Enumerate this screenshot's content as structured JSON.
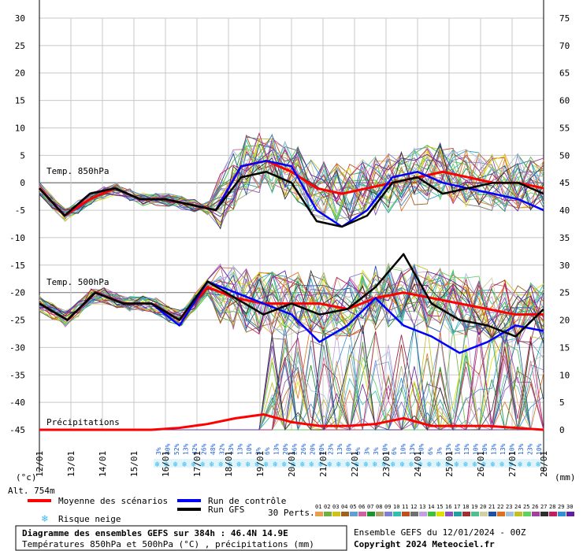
{
  "chart_data": {
    "type": "line",
    "left_axis": {
      "min": -45,
      "max": 30,
      "ticks": [
        "30",
        "25",
        "20",
        "15",
        "10",
        "5",
        "0",
        "-5",
        "-10",
        "-15",
        "-20",
        "-25",
        "-30",
        "-35",
        "-40",
        "-45"
      ]
    },
    "right_axis": {
      "min": 0,
      "max": 75,
      "ticks": [
        "75",
        "70",
        "65",
        "60",
        "55",
        "50",
        "45",
        "40",
        "35",
        "30",
        "25",
        "20",
        "15",
        "10",
        "5",
        "0"
      ]
    },
    "left_unit": "(°c)",
    "right_unit": "(mm)",
    "altitude": "Alt. 754m",
    "dates": [
      "12/01",
      "13/01",
      "14/01",
      "15/01",
      "16/01",
      "17/01",
      "18/01",
      "19/01",
      "20/01",
      "21/01",
      "22/01",
      "23/01",
      "24/01",
      "25/01",
      "26/01",
      "27/01",
      "28/01"
    ],
    "band_labels": {
      "t850": "Temp. 850hPa",
      "t500": "Temp. 500hPa",
      "precip": "Précipitations"
    },
    "snow_risk_pct": [
      "3%",
      "20%",
      "52%",
      "13%",
      "42%",
      "26%",
      "48%",
      "32%",
      "13%",
      "13%",
      "10%",
      "3%",
      "6%",
      "13%",
      "20%",
      "26%",
      "26%",
      "20%",
      "20%",
      "23%",
      "13%",
      "10%",
      "6%",
      "3%",
      "3%",
      "10%",
      "6%",
      "10%",
      "13%",
      "10%",
      "6%",
      "3%",
      "13%",
      "16%",
      "13%",
      "10%",
      "10%",
      "13%",
      "13%",
      "10%",
      "13%",
      "23%",
      "10%"
    ],
    "series": [
      {
        "name": "Moyenne des scénarios",
        "color": "#ff0000",
        "t850": [
          -1,
          -6,
          -3,
          -1,
          -3,
          -3,
          -4,
          -5,
          3,
          4,
          2,
          -1,
          -2,
          -1,
          0,
          1,
          2,
          1,
          0,
          0,
          -1
        ],
        "t500": [
          -22,
          -25,
          -20,
          -22,
          -22,
          -25,
          -19,
          -21,
          -22,
          -22,
          -22,
          -23,
          -21,
          -20,
          -21,
          -22,
          -23,
          -24,
          -24
        ],
        "precip": [
          0,
          0,
          0,
          0,
          0,
          0.5,
          1.5,
          3,
          4,
          2,
          1,
          1,
          1.5,
          3,
          1,
          1,
          1,
          0.5,
          0
        ]
      },
      {
        "name": "Run de contrôle",
        "color": "#0000ff",
        "t850": [
          -1,
          -6,
          -2,
          -1,
          -3,
          -3,
          -4,
          -5,
          3,
          4,
          3,
          -5,
          -8,
          -5,
          1,
          2,
          0,
          -1,
          -2,
          -3,
          -5
        ],
        "t500": [
          -22,
          -25,
          -20,
          -22,
          -22,
          -26,
          -18,
          -20,
          -22,
          -24,
          -29,
          -26,
          -21,
          -26,
          -28,
          -31,
          -29,
          -26,
          -27
        ]
      },
      {
        "name": "Run GFS",
        "color": "#000000",
        "t850": [
          -1,
          -6,
          -2,
          -1,
          -3,
          -3,
          -4,
          -5,
          1,
          2,
          0,
          -7,
          -8,
          -6,
          0,
          1,
          -2,
          -1,
          0,
          0,
          -2
        ],
        "t500": [
          -22,
          -25,
          -20,
          -22,
          -22,
          -25,
          -18,
          -21,
          -24,
          -22,
          -24,
          -23,
          -19,
          -13,
          -22,
          -25,
          -26,
          -28,
          -23
        ]
      }
    ],
    "perturbations_label": "30 Perts.",
    "perturbation_ids": [
      "01",
      "02",
      "03",
      "04",
      "05",
      "06",
      "07",
      "08",
      "09",
      "10",
      "11",
      "12",
      "13",
      "14",
      "15",
      "16",
      "17",
      "18",
      "19",
      "20",
      "21",
      "22",
      "23",
      "24",
      "25",
      "26",
      "27",
      "28",
      "29",
      "30"
    ],
    "perturbation_colors": [
      "#e8a050",
      "#70b040",
      "#d0c020",
      "#a06020",
      "#60a0d0",
      "#d060a0",
      "#209030",
      "#b0a070",
      "#8080d0",
      "#30c0b0",
      "#c05020",
      "#707070",
      "#c0a0e0",
      "#40c040",
      "#e0e000",
      "#9050c0",
      "#20a0a0",
      "#a03030",
      "#50c090",
      "#d0d0a0",
      "#2050a0",
      "#e07020",
      "#a0c0e0",
      "#c0c020",
      "#60d060",
      "#a040a0",
      "#303030",
      "#c02060",
      "#3090d0",
      "#6020a0"
    ]
  },
  "legend": {
    "mean": "Moyenne des scénarios",
    "control": "Run de contrôle",
    "gfs": "Run GFS",
    "snow": "Risque neige",
    "perts": "30 Perts."
  },
  "footer": {
    "title": "Diagramme des ensembles GEFS sur 384h : 46.4N 14.9E",
    "subtitle": "Températures 850hPa et 500hPa (°C) , précipitations (mm)",
    "run": "Ensemble GEFS du 12/01/2024 - 00Z",
    "copyright": "Copyright 2024 Meteociel.fr"
  },
  "colors": {
    "mean": "#ff0000",
    "control": "#0000ff",
    "gfs": "#000000",
    "snow": "#38b8ec",
    "pct": "#1b5fd6"
  }
}
